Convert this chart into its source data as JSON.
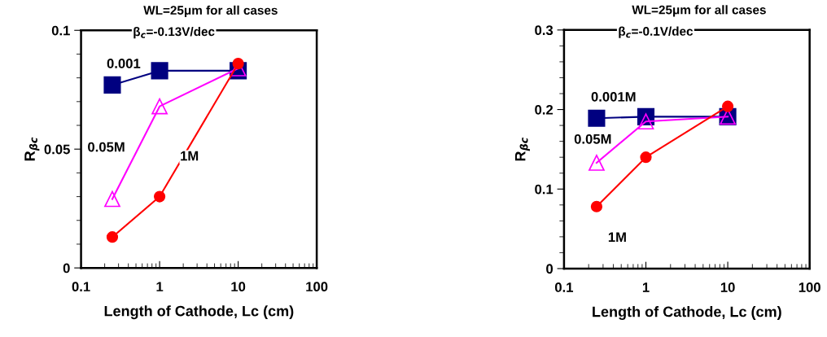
{
  "chart_data": [
    {
      "type": "line",
      "title": "WL=25μm for all cases",
      "subtitle": "β$_{c}$=-0.13V/dec",
      "xlabel": "Length of Cathode, Lc (cm)",
      "ylabel": "R$_{βc}$",
      "log": "x",
      "xlim": [
        0.1,
        100
      ],
      "xticks": [
        0.1,
        1,
        10,
        100
      ],
      "ylim": [
        0,
        0.1
      ],
      "yticks": [
        0,
        0.05,
        0.1
      ],
      "grid": false,
      "legend": false,
      "x": [
        0.25,
        1,
        10
      ],
      "series": [
        {
          "name": "0.001",
          "color": "#000080",
          "marker": "square",
          "values": [
            0.077,
            0.083,
            0.083
          ]
        },
        {
          "name": "0.05M",
          "color": "#ff00ff",
          "marker": "triangle",
          "values": [
            0.029,
            0.068,
            0.084
          ]
        },
        {
          "name": "1M",
          "color": "#ff0000",
          "marker": "circle",
          "values": [
            0.013,
            0.03,
            0.086
          ]
        }
      ]
    },
    {
      "type": "line",
      "title": "WL=25μm for all cases",
      "subtitle": "β$_{c}$=-0.1V/dec",
      "xlabel": "Length of Cathode, Lc (cm)",
      "ylabel": "R$_{βc}$",
      "log": "x",
      "xlim": [
        0.1,
        100
      ],
      "xticks": [
        0.1,
        1,
        10,
        100
      ],
      "ylim": [
        0,
        0.3
      ],
      "yticks": [
        0,
        0.1,
        0.2,
        0.3
      ],
      "grid": false,
      "legend": false,
      "x": [
        0.25,
        1,
        10
      ],
      "series": [
        {
          "name": "0.001M",
          "color": "#000080",
          "marker": "square",
          "values": [
            0.189,
            0.191,
            0.191
          ]
        },
        {
          "name": "0.05M",
          "color": "#ff00ff",
          "marker": "triangle",
          "values": [
            0.133,
            0.185,
            0.191
          ]
        },
        {
          "name": "1M",
          "color": "#ff0000",
          "marker": "circle",
          "values": [
            0.078,
            0.14,
            0.204
          ]
        }
      ]
    }
  ]
}
